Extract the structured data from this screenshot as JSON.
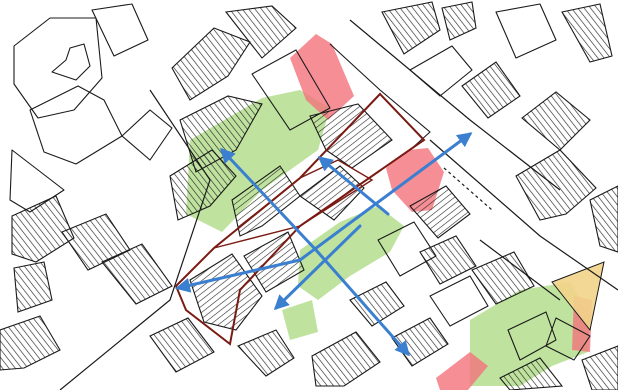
{
  "title": "",
  "colors": {
    "paper": "#ffffff",
    "ink": "#1a1a1a",
    "hatch": "#2a2a2a",
    "green_wash": "#a9d97e",
    "red_wash": "#f4727c",
    "yellow_wash": "#f2d38a",
    "arrow": "#3a7fd0",
    "site_outline": "#7a1a12"
  },
  "layers": {
    "buildings": "hatched-building-blocks",
    "green": "green-space",
    "red": "frontage",
    "arrows": "movement-arrows",
    "site": "site-boundary"
  },
  "icons": [
    "arrowhead-icon"
  ]
}
